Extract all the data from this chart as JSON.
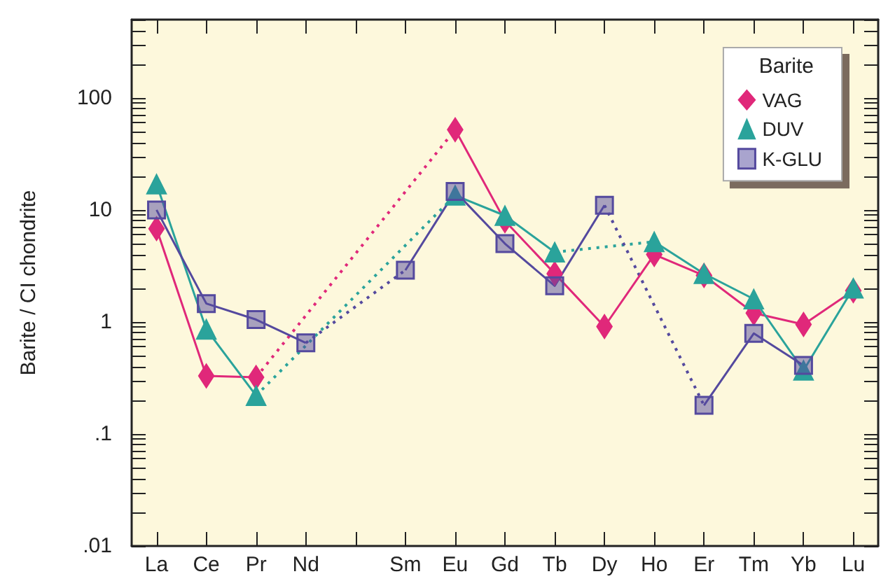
{
  "chart_data": {
    "type": "line",
    "ylabel": "Barite / CI chondrite",
    "legend_title": "Barite",
    "legend": "top right",
    "log": "y",
    "grid": false,
    "line_style": "solid",
    "categories": [
      "La",
      "Ce",
      "Pr",
      "Nd",
      null,
      "Sm",
      "Eu",
      "Gd",
      "Tb",
      "Dy",
      "Ho",
      "Er",
      "Tm",
      "Yb",
      "Lu"
    ],
    "ylim": [
      0.01,
      500
    ],
    "yticks": [
      {
        "value": 0.01,
        "label": ".01"
      },
      {
        "value": 0.02,
        "label": null
      },
      {
        "value": 0.03,
        "label": null
      },
      {
        "value": 0.04,
        "label": null
      },
      {
        "value": 0.05,
        "label": null
      },
      {
        "value": 0.06,
        "label": null
      },
      {
        "value": 0.07,
        "label": null
      },
      {
        "value": 0.08,
        "label": null
      },
      {
        "value": 0.09,
        "label": null
      },
      {
        "value": 0.1,
        "label": ".1"
      },
      {
        "value": 0.2,
        "label": null
      },
      {
        "value": 0.3,
        "label": null
      },
      {
        "value": 0.4,
        "label": null
      },
      {
        "value": 0.5,
        "label": null
      },
      {
        "value": 0.6,
        "label": null
      },
      {
        "value": 0.7,
        "label": null
      },
      {
        "value": 0.8,
        "label": null
      },
      {
        "value": 0.9,
        "label": null
      },
      1,
      {
        "value": 2,
        "label": null
      },
      {
        "value": 3,
        "label": null
      },
      {
        "value": 4,
        "label": null
      },
      {
        "value": 5,
        "label": null
      },
      {
        "value": 6,
        "label": null
      },
      {
        "value": 7,
        "label": null
      },
      {
        "value": 8,
        "label": null
      },
      {
        "value": 9,
        "label": null
      },
      10,
      {
        "value": 20,
        "label": null
      },
      {
        "value": 30,
        "label": null
      },
      {
        "value": 40,
        "label": null
      },
      {
        "value": 50,
        "label": null
      },
      {
        "value": 60,
        "label": null
      },
      {
        "value": 70,
        "label": null
      },
      {
        "value": 80,
        "label": null
      },
      {
        "value": 90,
        "label": null
      },
      100,
      {
        "value": 200,
        "label": null
      },
      {
        "value": 300,
        "label": null
      },
      {
        "value": 400,
        "label": null
      },
      {
        "value": 500,
        "label": null
      }
    ],
    "series": [
      {
        "name": "VAG",
        "color": "#e0287a",
        "marker": "diamond",
        "values": [
          6.8,
          0.33,
          0.32,
          null,
          null,
          null,
          52,
          8.0,
          2.7,
          0.91,
          4.0,
          2.6,
          1.2,
          0.95,
          1.9
        ]
      },
      {
        "name": "DUV",
        "color": "#2aa39b",
        "marker": "triangle",
        "values": [
          17,
          0.86,
          0.22,
          null,
          null,
          null,
          13.5,
          8.9,
          4.2,
          null,
          5.2,
          2.7,
          1.6,
          0.37,
          2.0
        ]
      },
      {
        "name": "K-GLU",
        "color": "#54499e",
        "marker": "square",
        "values": [
          10,
          1.46,
          1.05,
          0.65,
          null,
          2.9,
          14.6,
          5.0,
          2.1,
          11,
          null,
          0.18,
          0.79,
          0.41,
          null
        ]
      }
    ]
  }
}
